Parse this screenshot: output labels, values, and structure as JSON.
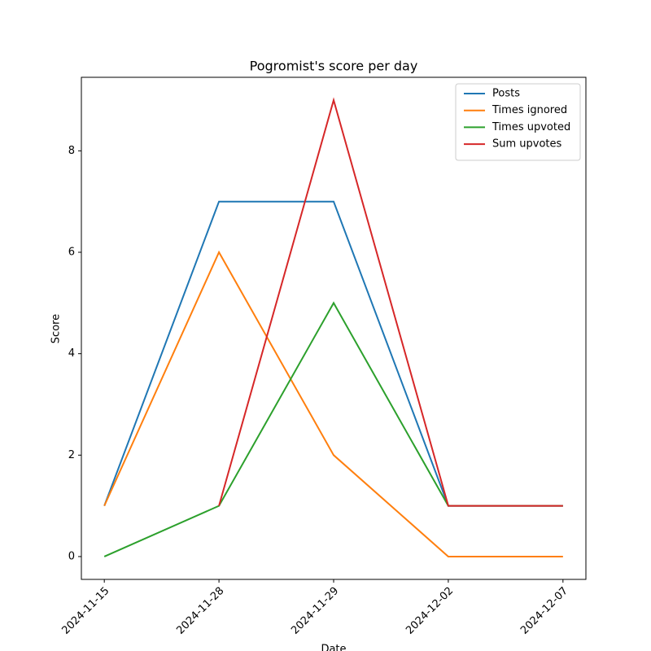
{
  "chart_data": {
    "type": "line",
    "title": "Pogromist's score per day",
    "xlabel": "Date",
    "ylabel": "Score",
    "categories": [
      "2024-11-15",
      "2024-11-28",
      "2024-11-29",
      "2024-12-02",
      "2024-12-07"
    ],
    "series": [
      {
        "name": "Posts",
        "color": "#1f77b4",
        "values": [
          1,
          7,
          7,
          1,
          1
        ]
      },
      {
        "name": "Times ignored",
        "color": "#ff7f0e",
        "values": [
          1,
          6,
          2,
          0,
          0
        ]
      },
      {
        "name": "Times upvoted",
        "color": "#2ca02c",
        "values": [
          0,
          1,
          5,
          1,
          1
        ]
      },
      {
        "name": "Sum upvotes",
        "color": "#d62728",
        "values": [
          null,
          1,
          9,
          1,
          1
        ]
      }
    ],
    "ylim": [
      -0.45,
      9.45
    ],
    "yticks": [
      0,
      2,
      4,
      6,
      8
    ],
    "legend": "upper right"
  }
}
